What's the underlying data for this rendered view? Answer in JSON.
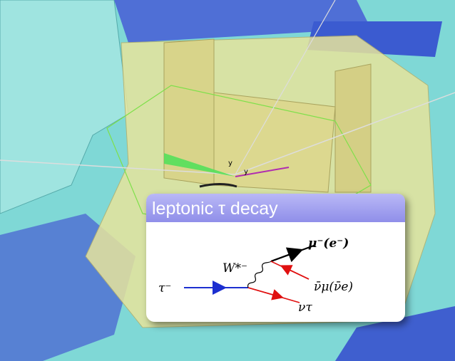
{
  "scene": {
    "axis_labels": [
      "y",
      "y"
    ]
  },
  "panel": {
    "title": "leptonic τ decay"
  },
  "diagram": {
    "tau": "τ⁻",
    "w": "W*⁻",
    "muon": "μ⁻(e⁻)",
    "antineutrino": "ν̄μ(ν̄e)",
    "neutrino": "ντ"
  }
}
